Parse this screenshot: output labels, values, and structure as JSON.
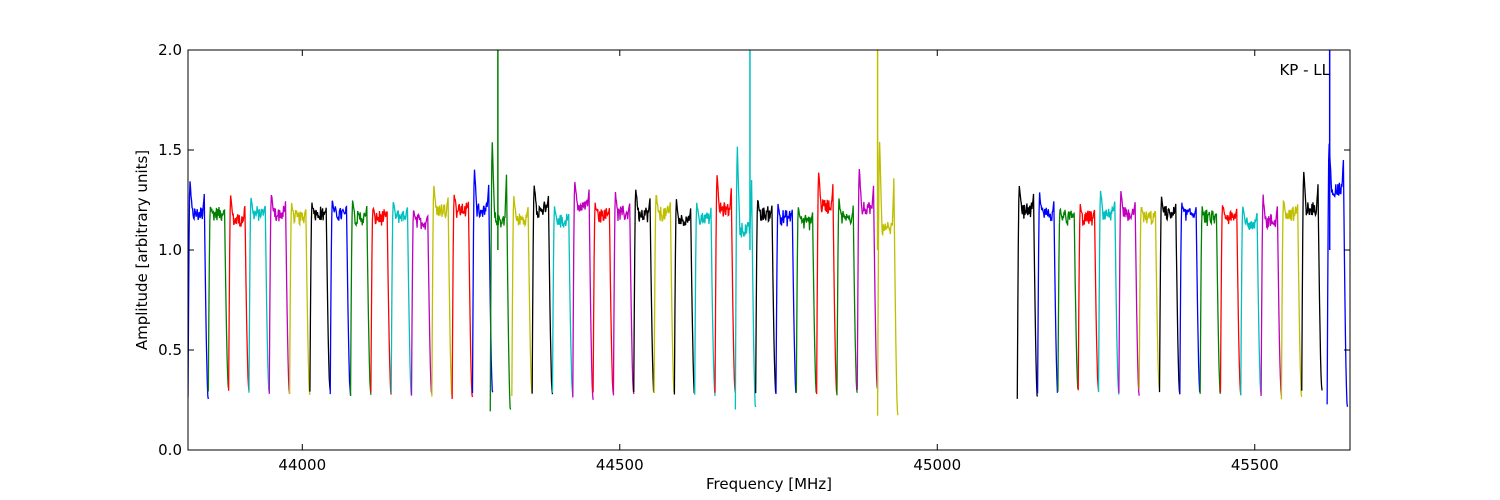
{
  "chart_data": {
    "type": "line",
    "xlabel": "Frequency [MHz]",
    "ylabel": "Amplitude [arbitrary units]",
    "annotation": "KP - LL",
    "xlim": [
      43820,
      45650
    ],
    "ylim": [
      0.0,
      2.0
    ],
    "x_ticks": [
      44000,
      44500,
      45000,
      45500
    ],
    "x_tick_labels": [
      "44000",
      "44500",
      "45000",
      "45500"
    ],
    "y_ticks": [
      0.0,
      0.5,
      1.0,
      1.5,
      2.0
    ],
    "y_tick_labels": [
      "0.0",
      "0.5",
      "1.0",
      "1.5",
      "2.0"
    ],
    "grid": false,
    "colors": [
      "#0000ff",
      "#008000",
      "#ff0000",
      "#00bfbf",
      "#bf00bf",
      "#bfbf00",
      "#000000"
    ],
    "channel_width_mhz": 32,
    "channels": [
      {
        "start": 43820,
        "color": "#0000ff",
        "peak": 1.34,
        "level": 1.18,
        "min": 0.26
      },
      {
        "start": 43852,
        "color": "#008000",
        "peak": 1.22,
        "level": 1.18,
        "min": 0.3
      },
      {
        "start": 43884,
        "color": "#ff0000",
        "peak": 1.27,
        "level": 1.15,
        "min": 0.3
      },
      {
        "start": 43916,
        "color": "#00bfbf",
        "peak": 1.26,
        "level": 1.18,
        "min": 0.28
      },
      {
        "start": 43948,
        "color": "#bf00bf",
        "peak": 1.28,
        "level": 1.18,
        "min": 0.28
      },
      {
        "start": 43980,
        "color": "#bfbf00",
        "peak": 1.24,
        "level": 1.16,
        "min": 0.28
      },
      {
        "start": 44012,
        "color": "#000000",
        "peak": 1.23,
        "level": 1.18,
        "min": 0.3
      },
      {
        "start": 44044,
        "color": "#0000ff",
        "peak": 1.24,
        "level": 1.18,
        "min": 0.28
      },
      {
        "start": 44076,
        "color": "#008000",
        "peak": 1.25,
        "level": 1.16,
        "min": 0.28
      },
      {
        "start": 44108,
        "color": "#ff0000",
        "peak": 1.21,
        "level": 1.16,
        "min": 0.28
      },
      {
        "start": 44140,
        "color": "#00bfbf",
        "peak": 1.24,
        "level": 1.17,
        "min": 0.28
      },
      {
        "start": 44172,
        "color": "#bf00bf",
        "peak": 1.2,
        "level": 1.14,
        "min": 0.28
      },
      {
        "start": 44204,
        "color": "#bfbf00",
        "peak": 1.32,
        "level": 1.2,
        "min": 0.26
      },
      {
        "start": 44236,
        "color": "#ff0000",
        "peak": 1.28,
        "level": 1.2,
        "min": 0.26
      },
      {
        "start": 44268,
        "color": "#0000ff",
        "peak": 1.4,
        "level": 1.2,
        "min": 0.28
      },
      {
        "start": 44296,
        "color": "#008000",
        "peak": 1.53,
        "level": 1.15,
        "min": 0.2
      },
      {
        "start": 44330,
        "color": "#bfbf00",
        "peak": 1.27,
        "level": 1.15,
        "min": 0.28
      },
      {
        "start": 44362,
        "color": "#000000",
        "peak": 1.33,
        "level": 1.2,
        "min": 0.28
      },
      {
        "start": 44394,
        "color": "#00bfbf",
        "peak": 1.22,
        "level": 1.14,
        "min": 0.28
      },
      {
        "start": 44426,
        "color": "#bf00bf",
        "peak": 1.35,
        "level": 1.22,
        "min": 0.26
      },
      {
        "start": 44458,
        "color": "#ff0000",
        "peak": 1.23,
        "level": 1.18,
        "min": 0.28
      },
      {
        "start": 44490,
        "color": "#bf00bf",
        "peak": 1.28,
        "level": 1.18,
        "min": 0.28
      },
      {
        "start": 44522,
        "color": "#000000",
        "peak": 1.31,
        "level": 1.18,
        "min": 0.28
      },
      {
        "start": 44554,
        "color": "#bfbf00",
        "peak": 1.28,
        "level": 1.18,
        "min": 0.28
      },
      {
        "start": 44586,
        "color": "#000000",
        "peak": 1.25,
        "level": 1.15,
        "min": 0.28
      },
      {
        "start": 44618,
        "color": "#00bfbf",
        "peak": 1.23,
        "level": 1.16,
        "min": 0.28
      },
      {
        "start": 44650,
        "color": "#ff0000",
        "peak": 1.37,
        "level": 1.2,
        "min": 0.28
      },
      {
        "start": 44682,
        "color": "#00bfbf",
        "peak": 1.51,
        "level": 1.1,
        "min": 0.21
      },
      {
        "start": 44714,
        "color": "#000000",
        "peak": 1.25,
        "level": 1.18,
        "min": 0.28
      },
      {
        "start": 44746,
        "color": "#0000ff",
        "peak": 1.23,
        "level": 1.16,
        "min": 0.28
      },
      {
        "start": 44778,
        "color": "#008000",
        "peak": 1.22,
        "level": 1.14,
        "min": 0.28
      },
      {
        "start": 44810,
        "color": "#ff0000",
        "peak": 1.39,
        "level": 1.22,
        "min": 0.28
      },
      {
        "start": 44842,
        "color": "#008000",
        "peak": 1.25,
        "level": 1.16,
        "min": 0.28
      },
      {
        "start": 44874,
        "color": "#bf00bf",
        "peak": 1.41,
        "level": 1.2,
        "min": 0.3
      },
      {
        "start": 44906,
        "color": "#bfbf00",
        "peak": 1.54,
        "level": 1.1,
        "min": 0.18
      },
      {
        "start": 45126,
        "color": "#000000",
        "peak": 1.33,
        "level": 1.2,
        "min": 0.26
      },
      {
        "start": 45158,
        "color": "#0000ff",
        "peak": 1.28,
        "level": 1.18,
        "min": 0.28
      },
      {
        "start": 45190,
        "color": "#008000",
        "peak": 1.21,
        "level": 1.16,
        "min": 0.3
      },
      {
        "start": 45222,
        "color": "#ff0000",
        "peak": 1.22,
        "level": 1.16,
        "min": 0.3
      },
      {
        "start": 45254,
        "color": "#00bfbf",
        "peak": 1.3,
        "level": 1.18,
        "min": 0.28
      },
      {
        "start": 45286,
        "color": "#bf00bf",
        "peak": 1.29,
        "level": 1.18,
        "min": 0.28
      },
      {
        "start": 45318,
        "color": "#bfbf00",
        "peak": 1.22,
        "level": 1.16,
        "min": 0.3
      },
      {
        "start": 45350,
        "color": "#000000",
        "peak": 1.26,
        "level": 1.18,
        "min": 0.28
      },
      {
        "start": 45382,
        "color": "#0000ff",
        "peak": 1.23,
        "level": 1.18,
        "min": 0.28
      },
      {
        "start": 45414,
        "color": "#008000",
        "peak": 1.21,
        "level": 1.16,
        "min": 0.28
      },
      {
        "start": 45446,
        "color": "#ff0000",
        "peak": 1.23,
        "level": 1.16,
        "min": 0.28
      },
      {
        "start": 45478,
        "color": "#00bfbf",
        "peak": 1.22,
        "level": 1.14,
        "min": 0.28
      },
      {
        "start": 45510,
        "color": "#bf00bf",
        "peak": 1.27,
        "level": 1.14,
        "min": 0.28
      },
      {
        "start": 45542,
        "color": "#bfbf00",
        "peak": 1.25,
        "level": 1.18,
        "min": 0.26
      },
      {
        "start": 45574,
        "color": "#000000",
        "peak": 1.4,
        "level": 1.2,
        "min": 0.3
      },
      {
        "start": 45614,
        "color": "#0000ff",
        "peak": 1.54,
        "level": 1.3,
        "min": 0.22
      }
    ],
    "spikes": [
      {
        "x": 44308,
        "y_max": 2.0,
        "color": "#008000"
      },
      {
        "x": 44705,
        "y_max": 2.0,
        "color": "#00bfbf"
      },
      {
        "x": 44906,
        "y_max": 2.0,
        "color": "#bfbf00"
      },
      {
        "x": 45618,
        "y_max": 2.0,
        "color": "#0000ff"
      }
    ]
  }
}
